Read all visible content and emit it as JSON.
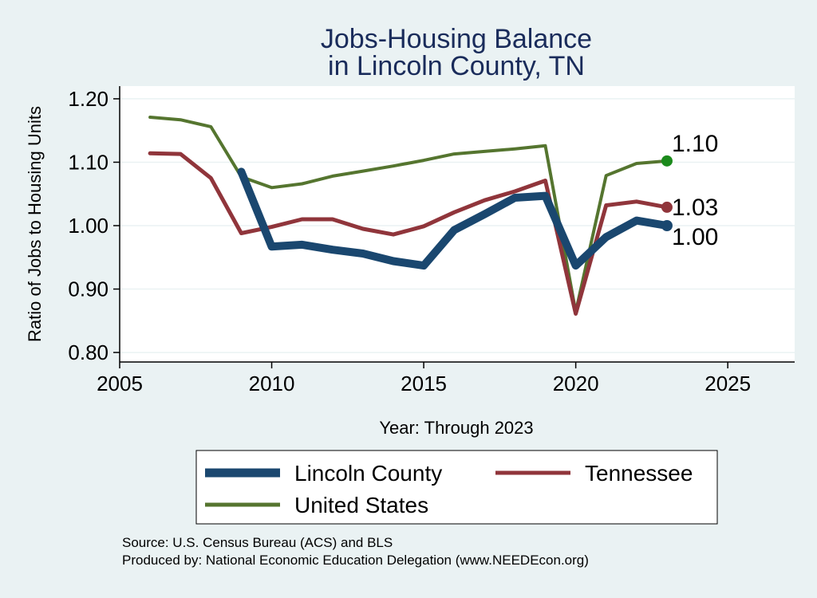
{
  "chart_data": {
    "type": "line",
    "title_lines": [
      "Jobs-Housing Balance",
      "in Lincoln County, TN"
    ],
    "xlabel": "Year: Through 2023",
    "ylabel": "Ratio of Jobs to Housing Units",
    "xlim": [
      2005,
      2027.2
    ],
    "ylim": [
      0.785,
      1.22
    ],
    "xticks": [
      2005,
      2010,
      2015,
      2020,
      2025
    ],
    "yticks": [
      0.8,
      0.9,
      1.0,
      1.1,
      1.2
    ],
    "ytick_labels": [
      "0.80",
      "0.90",
      "1.00",
      "1.10",
      "1.20"
    ],
    "grid": true,
    "legend_position": "bottom",
    "series": [
      {
        "name": "Lincoln County",
        "color": "#1a476f",
        "x": [
          2009,
          2010,
          2011,
          2012,
          2013,
          2014,
          2015,
          2016,
          2017,
          2018,
          2019,
          2020,
          2021,
          2022,
          2023
        ],
        "values": [
          1.085,
          0.967,
          0.97,
          0.962,
          0.956,
          0.944,
          0.937,
          0.993,
          1.018,
          1.044,
          1.047,
          0.937,
          0.982,
          1.008,
          1.0
        ],
        "end_label": "1.00"
      },
      {
        "name": "Tennessee",
        "color": "#90353b",
        "x": [
          2006,
          2007,
          2008,
          2009,
          2010,
          2011,
          2012,
          2013,
          2014,
          2015,
          2016,
          2017,
          2018,
          2019,
          2020,
          2021,
          2022,
          2023
        ],
        "values": [
          1.114,
          1.113,
          1.075,
          0.988,
          0.998,
          1.01,
          1.01,
          0.995,
          0.986,
          0.999,
          1.021,
          1.04,
          1.054,
          1.071,
          0.861,
          1.032,
          1.038,
          1.029
        ],
        "end_label": "1.03"
      },
      {
        "name": "United States",
        "color": "#55752f",
        "x": [
          2006,
          2007,
          2008,
          2009,
          2010,
          2011,
          2012,
          2013,
          2014,
          2015,
          2016,
          2017,
          2018,
          2019,
          2020,
          2021,
          2022,
          2023
        ],
        "values": [
          1.171,
          1.167,
          1.156,
          1.077,
          1.06,
          1.066,
          1.078,
          1.086,
          1.094,
          1.103,
          1.113,
          1.117,
          1.121,
          1.126,
          0.864,
          1.079,
          1.098,
          1.102
        ],
        "end_label": "1.10",
        "end_marker_color": "#1b8a1b"
      }
    ]
  },
  "source": {
    "line1": "Source: U.S. Census Bureau (ACS) and BLS",
    "line2": "Produced by: National Economic Education Delegation (www.NEEDEcon.org)"
  }
}
